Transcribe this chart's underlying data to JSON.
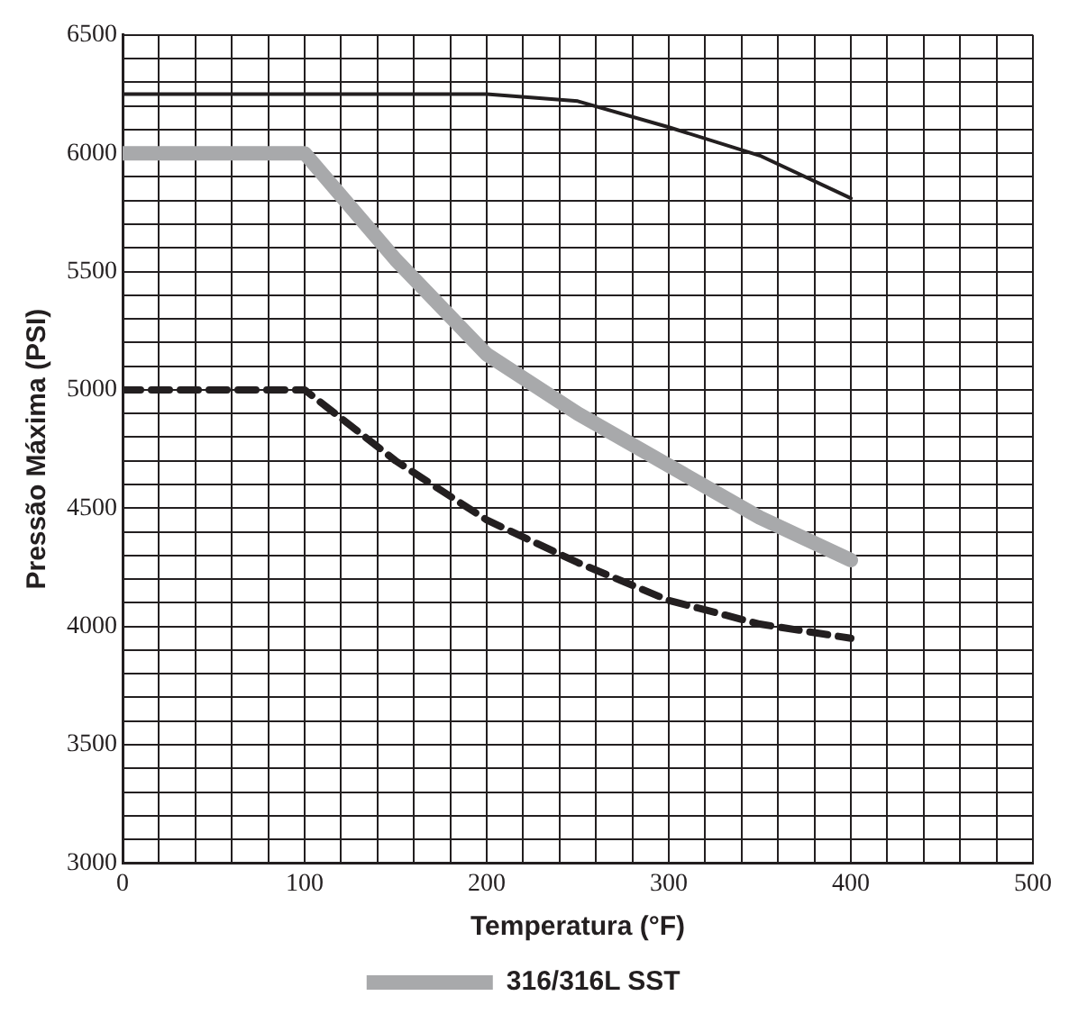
{
  "chart_data": {
    "type": "line",
    "xlabel": "Temperatura (°F)",
    "ylabel": "Pressão Máxima (PSI)",
    "xlim": [
      0,
      500
    ],
    "ylim": [
      3000,
      6500
    ],
    "xticks": [
      0,
      {
        "value": 20,
        "label": null
      },
      {
        "value": 40,
        "label": null
      },
      {
        "value": 60,
        "label": null
      },
      {
        "value": 80,
        "label": null
      },
      100,
      {
        "value": 120,
        "label": null
      },
      {
        "value": 140,
        "label": null
      },
      {
        "value": 160,
        "label": null
      },
      {
        "value": 180,
        "label": null
      },
      200,
      {
        "value": 220,
        "label": null
      },
      {
        "value": 240,
        "label": null
      },
      {
        "value": 260,
        "label": null
      },
      {
        "value": 280,
        "label": null
      },
      300,
      {
        "value": 320,
        "label": null
      },
      {
        "value": 340,
        "label": null
      },
      {
        "value": 360,
        "label": null
      },
      {
        "value": 380,
        "label": null
      },
      400,
      {
        "value": 420,
        "label": null
      },
      {
        "value": 440,
        "label": null
      },
      {
        "value": 460,
        "label": null
      },
      {
        "value": 480,
        "label": null
      },
      500
    ],
    "yticks": [
      3000,
      {
        "value": 3100,
        "label": null
      },
      {
        "value": 3200,
        "label": null
      },
      {
        "value": 3300,
        "label": null
      },
      {
        "value": 3400,
        "label": null
      },
      3500,
      {
        "value": 3600,
        "label": null
      },
      {
        "value": 3700,
        "label": null
      },
      {
        "value": 3800,
        "label": null
      },
      {
        "value": 3900,
        "label": null
      },
      4000,
      {
        "value": 4100,
        "label": null
      },
      {
        "value": 4200,
        "label": null
      },
      {
        "value": 4300,
        "label": null
      },
      {
        "value": 4400,
        "label": null
      },
      4500,
      {
        "value": 4600,
        "label": null
      },
      {
        "value": 4700,
        "label": null
      },
      {
        "value": 4800,
        "label": null
      },
      {
        "value": 4900,
        "label": null
      },
      5000,
      {
        "value": 5100,
        "label": null
      },
      {
        "value": 5200,
        "label": null
      },
      {
        "value": 5300,
        "label": null
      },
      {
        "value": 5400,
        "label": null
      },
      5500,
      {
        "value": 5600,
        "label": null
      },
      {
        "value": 5700,
        "label": null
      },
      {
        "value": 5800,
        "label": null
      },
      {
        "value": 5900,
        "label": null
      },
      6000,
      {
        "value": 6100,
        "label": null
      },
      {
        "value": 6200,
        "label": null
      },
      {
        "value": 6300,
        "label": null
      },
      {
        "value": 6400,
        "label": null
      },
      6500
    ],
    "grid": true,
    "legend": "bottom",
    "marker": "none",
    "series": [
      {
        "name": "316/316L SST",
        "color": "#a8a9ab",
        "line_style": "solid",
        "x": [
          0,
          100,
          150,
          200,
          250,
          300,
          350,
          400
        ],
        "values": [
          6000,
          6000,
          5550,
          5150,
          4900,
          4680,
          4460,
          4280
        ]
      },
      {
        "color": "#231f20",
        "line_style": "solid",
        "x": [
          0,
          100,
          200,
          250,
          300,
          350,
          400
        ],
        "values": [
          6250,
          6250,
          6250,
          6220,
          6110,
          5990,
          5810
        ]
      },
      {
        "color": "#231f20",
        "line_style": "dashed",
        "x": [
          0,
          100,
          150,
          200,
          250,
          300,
          350,
          400
        ],
        "values": [
          5000,
          5000,
          4700,
          4450,
          4270,
          4110,
          4010,
          3950
        ]
      }
    ]
  }
}
